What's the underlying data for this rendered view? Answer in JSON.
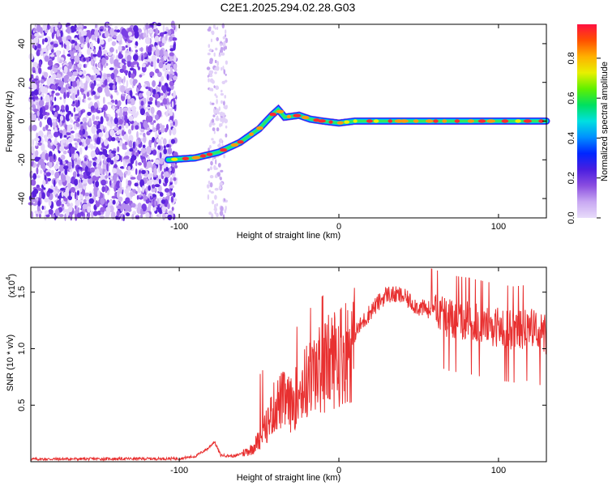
{
  "title": "C2E1.2025.294.02.28.G03",
  "chart_data": [
    {
      "type": "heatmap",
      "name": "spectrogram",
      "xlabel": "Height of straight line (km)",
      "ylabel": "Frequency (Hz)",
      "xlim": [
        -193,
        130
      ],
      "ylim": [
        -50,
        50
      ],
      "xticks": [
        -100,
        0,
        100
      ],
      "yticks": [
        -40,
        -20,
        0,
        20,
        40
      ],
      "colorbar": {
        "label": "Normalized spectral amplitude",
        "range": [
          0,
          0.97
        ],
        "ticks": [
          0.0,
          0.2,
          0.4,
          0.6,
          0.8
        ],
        "colors": [
          "#e8dcfa",
          "#c8a8f2",
          "#8a4de0",
          "#4a1ee0",
          "#0026ff",
          "#0090ff",
          "#00e0e0",
          "#00e060",
          "#60f000",
          "#e8f000",
          "#ffb000",
          "#ff5000",
          "#ff1040"
        ]
      },
      "ridge": [
        [
          -107,
          -20
        ],
        [
          -90,
          -19
        ],
        [
          -75,
          -16
        ],
        [
          -62,
          -11
        ],
        [
          -50,
          -4
        ],
        [
          -42,
          3
        ],
        [
          -38,
          6
        ],
        [
          -34,
          2
        ],
        [
          -25,
          3
        ],
        [
          -18,
          1
        ],
        [
          -10,
          0
        ],
        [
          0,
          -1
        ],
        [
          10,
          0
        ],
        [
          50,
          0
        ],
        [
          100,
          0
        ],
        [
          130,
          0
        ]
      ],
      "noise_region": [
        -193,
        -100
      ],
      "noise_stripe": [
        -82,
        -70
      ]
    },
    {
      "type": "line",
      "name": "snr",
      "xlabel": "Height of straight line (km)",
      "ylabel": "SNR (10 * v/v)",
      "scale_label": "(x10",
      "scale_exp": "4",
      "xlim": [
        -193,
        130
      ],
      "ylim": [
        0,
        1.72
      ],
      "xticks": [
        -100,
        0,
        100
      ],
      "yticks": [
        0.5,
        1.0,
        1.5
      ],
      "color": "#e83030",
      "envelope": [
        [
          -193,
          0.025
        ],
        [
          -100,
          0.03
        ],
        [
          -90,
          0.05
        ],
        [
          -82,
          0.12
        ],
        [
          -78,
          0.18
        ],
        [
          -74,
          0.06
        ],
        [
          -65,
          0.05
        ],
        [
          -55,
          0.12
        ],
        [
          -48,
          0.25
        ],
        [
          -40,
          0.55
        ],
        [
          -35,
          0.6
        ],
        [
          -30,
          0.55
        ],
        [
          -22,
          0.75
        ],
        [
          -15,
          0.85
        ],
        [
          -8,
          0.95
        ],
        [
          0,
          1.05
        ],
        [
          10,
          1.15
        ],
        [
          20,
          1.35
        ],
        [
          30,
          1.5
        ],
        [
          40,
          1.48
        ],
        [
          50,
          1.38
        ],
        [
          60,
          1.35
        ],
        [
          70,
          1.3
        ],
        [
          80,
          1.28
        ],
        [
          90,
          1.25
        ],
        [
          100,
          1.22
        ],
        [
          110,
          1.2
        ],
        [
          120,
          1.22
        ],
        [
          130,
          1.15
        ]
      ]
    }
  ]
}
